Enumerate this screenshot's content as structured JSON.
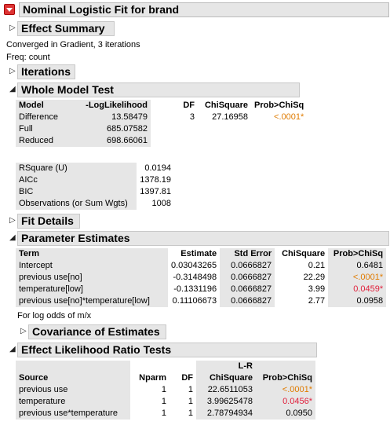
{
  "title": "Nominal Logistic Fit for brand",
  "effect_summary": {
    "label": "Effect Summary"
  },
  "converged": "Converged in Gradient, 3 iterations",
  "freq": "Freq: count",
  "iterations": {
    "label": "Iterations"
  },
  "whole_model": {
    "label": "Whole Model Test",
    "headers": [
      "Model",
      "-LogLikelihood",
      "DF",
      "ChiSquare",
      "Prob>ChiSq"
    ],
    "rows": [
      {
        "model": "Difference",
        "loglik": "13.58479",
        "df": "3",
        "chisq": "27.16958",
        "prob": "<.0001*"
      },
      {
        "model": "Full",
        "loglik": "685.07582",
        "df": "",
        "chisq": "",
        "prob": ""
      },
      {
        "model": "Reduced",
        "loglik": "698.66061",
        "df": "",
        "chisq": "",
        "prob": ""
      }
    ],
    "stats": [
      {
        "label": "RSquare (U)",
        "value": "0.0194"
      },
      {
        "label": "AICc",
        "value": "1378.19"
      },
      {
        "label": "BIC",
        "value": "1397.81"
      },
      {
        "label": "Observations (or Sum Wgts)",
        "value": "1008"
      }
    ]
  },
  "fit_details": {
    "label": "Fit Details"
  },
  "param": {
    "label": "Parameter Estimates",
    "headers": [
      "Term",
      "Estimate",
      "Std Error",
      "ChiSquare",
      "Prob>ChiSq"
    ],
    "rows": [
      {
        "term": "Intercept",
        "est": "0.03043265",
        "se": "0.0666827",
        "chisq": "0.21",
        "prob": "0.6481"
      },
      {
        "term": "previous use[no]",
        "est": "-0.3148498",
        "se": "0.0666827",
        "chisq": "22.29",
        "prob": "<.0001*"
      },
      {
        "term": "temperature[low]",
        "est": "-0.1331196",
        "se": "0.0666827",
        "chisq": "3.99",
        "prob": "0.0459*"
      },
      {
        "term": "previous use[no]*temperature[low]",
        "est": "0.11106673",
        "se": "0.0666827",
        "chisq": "2.77",
        "prob": "0.0958"
      }
    ],
    "note": "For log odds of m/x"
  },
  "covariance": {
    "label": "Covariance of Estimates"
  },
  "lr": {
    "label": "Effect Likelihood Ratio Tests",
    "headers": {
      "source": "Source",
      "nparm": "Nparm",
      "df": "DF",
      "lr_top": "L-R",
      "chisq": "ChiSquare",
      "prob": "Prob>ChiSq"
    },
    "rows": [
      {
        "source": "previous use",
        "nparm": "1",
        "df": "1",
        "chisq": "22.6511053",
        "prob": "<.0001*"
      },
      {
        "source": "temperature",
        "nparm": "1",
        "df": "1",
        "chisq": "3.99625478",
        "prob": "0.0456*"
      },
      {
        "source": "previous use*temperature",
        "nparm": "1",
        "df": "1",
        "chisq": "2.78794934",
        "prob": "0.0950"
      }
    ]
  },
  "colors": {
    "orange": "#e07b00",
    "red": "#e0203c",
    "header_bg": "#e6e6e6"
  }
}
